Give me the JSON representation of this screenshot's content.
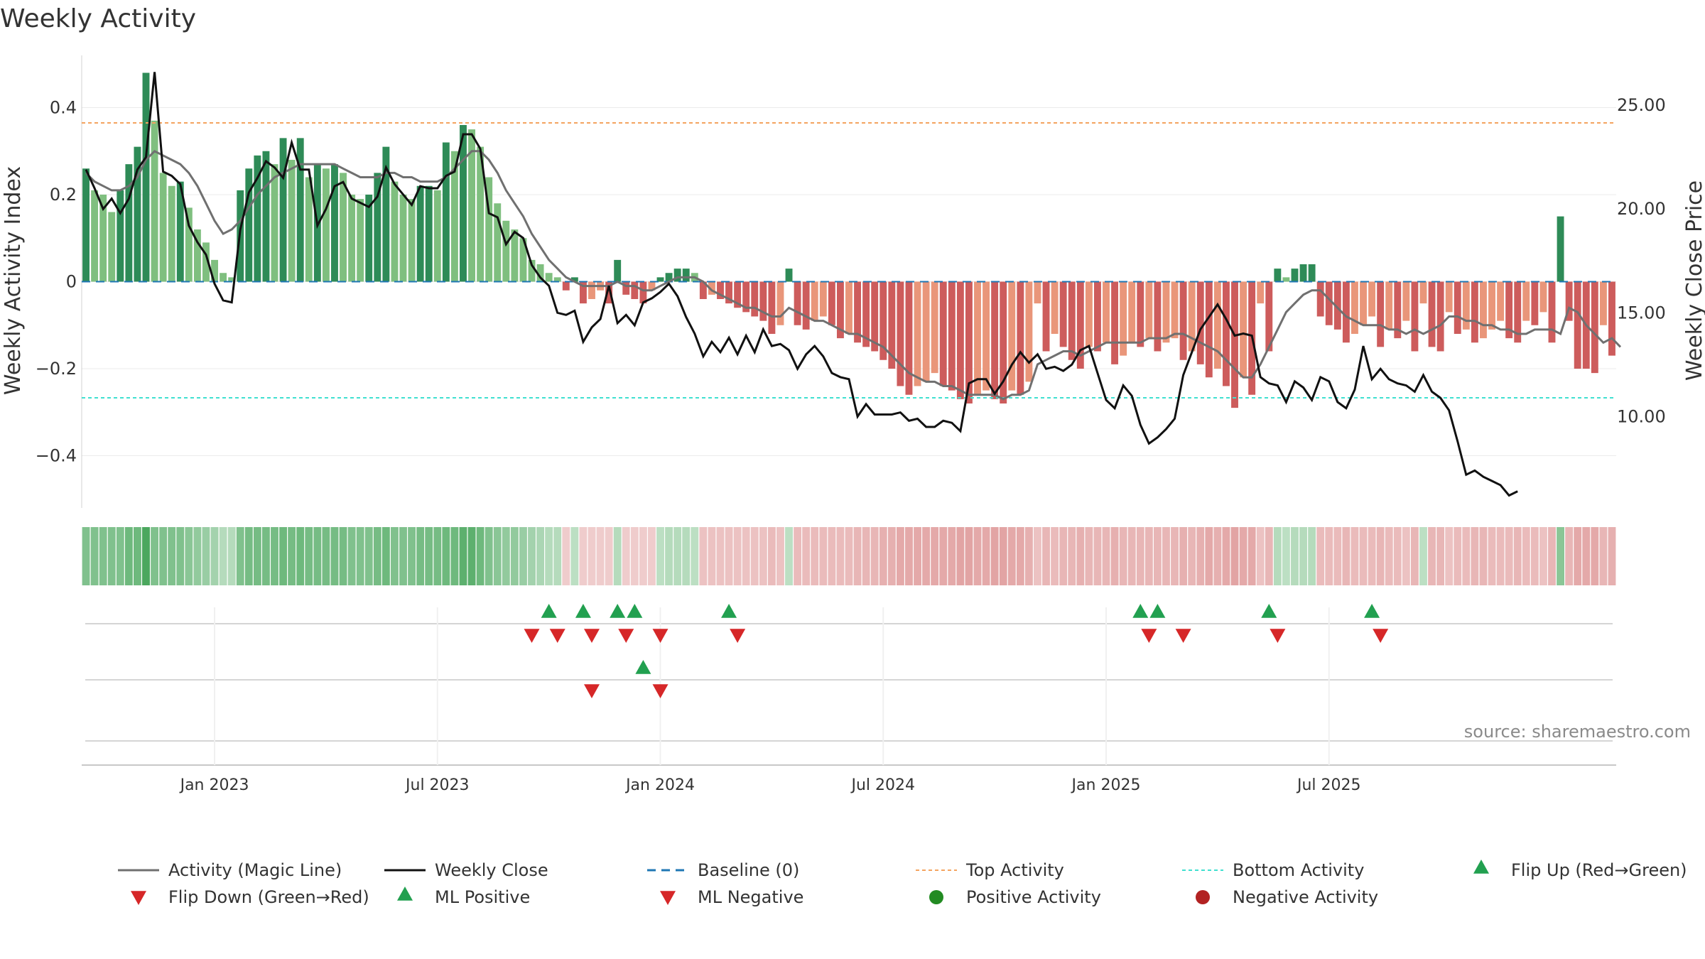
{
  "chart_data": {
    "type": "bar+line",
    "title": "Weekly Activity",
    "ylabel": "Weekly Activity Index",
    "y2label": "Weekly Close Price",
    "ylim": [
      -0.52,
      0.52
    ],
    "y2lim": [
      5.6,
      27.4
    ],
    "yticks": [
      {
        "v": 0.4,
        "label": "0.4"
      },
      {
        "v": 0.2,
        "label": "0.2"
      },
      {
        "v": 0,
        "label": "0"
      },
      {
        "v": -0.2,
        "label": "−0.2"
      },
      {
        "v": -0.4,
        "label": "−0.4"
      }
    ],
    "y2ticks": [
      {
        "v": 25,
        "label": "25.00"
      },
      {
        "v": 20,
        "label": "20.00"
      },
      {
        "v": 15,
        "label": "15.00"
      },
      {
        "v": 10,
        "label": "10.00"
      }
    ],
    "xticks": [
      {
        "week": 15,
        "label": "Jan 2023"
      },
      {
        "week": 41,
        "label": "Jul 2023"
      },
      {
        "week": 67,
        "label": "Jan 2024"
      },
      {
        "week": 93,
        "label": "Jul 2024"
      },
      {
        "week": 119,
        "label": "Jan 2025"
      },
      {
        "week": 145,
        "label": "Jul 2025"
      }
    ],
    "top_activity": 0.365,
    "bottom_activity": -0.267,
    "activity": [
      0.26,
      0.21,
      0.2,
      0.16,
      0.21,
      0.27,
      0.31,
      0.48,
      0.37,
      0.25,
      0.22,
      0.23,
      0.17,
      0.12,
      0.09,
      0.05,
      0.02,
      0.01,
      0.21,
      0.26,
      0.29,
      0.3,
      0.27,
      0.33,
      0.28,
      0.33,
      0.24,
      0.27,
      0.26,
      0.27,
      0.25,
      0.2,
      0.19,
      0.2,
      0.25,
      0.31,
      0.23,
      0.2,
      0.19,
      0.22,
      0.22,
      0.21,
      0.32,
      0.3,
      0.36,
      0.35,
      0.31,
      0.24,
      0.18,
      0.14,
      0.12,
      0.1,
      0.05,
      0.04,
      0.02,
      0.01,
      -0.02,
      0.01,
      -0.05,
      -0.04,
      -0.02,
      -0.05,
      0.05,
      -0.03,
      -0.04,
      -0.05,
      -0.02,
      0.01,
      0.02,
      0.03,
      0.03,
      0.02,
      -0.04,
      -0.03,
      -0.04,
      -0.05,
      -0.06,
      -0.07,
      -0.08,
      -0.09,
      -0.12,
      -0.1,
      0.03,
      -0.1,
      -0.11,
      -0.09,
      -0.08,
      -0.1,
      -0.13,
      -0.12,
      -0.14,
      -0.15,
      -0.16,
      -0.18,
      -0.2,
      -0.24,
      -0.26,
      -0.24,
      -0.23,
      -0.21,
      -0.24,
      -0.25,
      -0.27,
      -0.28,
      -0.26,
      -0.25,
      -0.27,
      -0.28,
      -0.25,
      -0.26,
      -0.23,
      -0.05,
      -0.16,
      -0.12,
      -0.15,
      -0.18,
      -0.2,
      -0.15,
      -0.16,
      -0.14,
      -0.19,
      -0.17,
      -0.14,
      -0.15,
      -0.13,
      -0.16,
      -0.14,
      -0.13,
      -0.18,
      -0.16,
      -0.19,
      -0.22,
      -0.2,
      -0.24,
      -0.29,
      -0.22,
      -0.26,
      -0.05,
      -0.16,
      0.03,
      0.01,
      0.03,
      0.04,
      0.04,
      -0.08,
      -0.1,
      -0.11,
      -0.14,
      -0.12,
      -0.1,
      -0.08,
      -0.15,
      -0.11,
      -0.13,
      -0.09,
      -0.16,
      -0.05,
      -0.15,
      -0.16,
      -0.07,
      -0.12,
      -0.11,
      -0.14,
      -0.13,
      -0.11,
      -0.09,
      -0.13,
      -0.14,
      -0.09,
      -0.1,
      -0.07,
      -0.14,
      0.15,
      -0.09,
      -0.2,
      -0.2,
      -0.21,
      -0.1,
      -0.17
    ],
    "magic_line": [
      0.25,
      0.23,
      0.22,
      0.21,
      0.21,
      0.22,
      0.24,
      0.28,
      0.3,
      0.29,
      0.28,
      0.27,
      0.25,
      0.22,
      0.18,
      0.14,
      0.11,
      0.12,
      0.14,
      0.17,
      0.2,
      0.22,
      0.24,
      0.25,
      0.26,
      0.27,
      0.27,
      0.27,
      0.27,
      0.27,
      0.26,
      0.25,
      0.24,
      0.24,
      0.24,
      0.25,
      0.25,
      0.24,
      0.24,
      0.23,
      0.23,
      0.23,
      0.24,
      0.26,
      0.28,
      0.3,
      0.3,
      0.28,
      0.25,
      0.21,
      0.18,
      0.15,
      0.11,
      0.08,
      0.05,
      0.03,
      0.01,
      0.0,
      -0.01,
      -0.01,
      -0.01,
      -0.01,
      0.0,
      -0.01,
      -0.01,
      -0.02,
      -0.02,
      -0.01,
      0.0,
      0.01,
      0.01,
      0.01,
      0.0,
      -0.02,
      -0.03,
      -0.04,
      -0.05,
      -0.06,
      -0.06,
      -0.07,
      -0.08,
      -0.08,
      -0.06,
      -0.07,
      -0.08,
      -0.09,
      -0.09,
      -0.1,
      -0.11,
      -0.12,
      -0.12,
      -0.13,
      -0.14,
      -0.15,
      -0.17,
      -0.19,
      -0.21,
      -0.22,
      -0.23,
      -0.23,
      -0.24,
      -0.24,
      -0.25,
      -0.26,
      -0.26,
      -0.26,
      -0.26,
      -0.27,
      -0.26,
      -0.26,
      -0.25,
      -0.19,
      -0.18,
      -0.17,
      -0.16,
      -0.16,
      -0.17,
      -0.16,
      -0.15,
      -0.14,
      -0.14,
      -0.14,
      -0.14,
      -0.14,
      -0.13,
      -0.13,
      -0.13,
      -0.12,
      -0.12,
      -0.13,
      -0.14,
      -0.15,
      -0.16,
      -0.18,
      -0.2,
      -0.22,
      -0.22,
      -0.19,
      -0.15,
      -0.11,
      -0.07,
      -0.05,
      -0.03,
      -0.02,
      -0.02,
      -0.04,
      -0.06,
      -0.08,
      -0.09,
      -0.1,
      -0.1,
      -0.1,
      -0.11,
      -0.11,
      -0.12,
      -0.11,
      -0.12,
      -0.11,
      -0.1,
      -0.08,
      -0.08,
      -0.09,
      -0.09,
      -0.1,
      -0.1,
      -0.11,
      -0.11,
      -0.12,
      -0.12,
      -0.11,
      -0.11,
      -0.11,
      -0.12,
      -0.06,
      -0.07,
      -0.1,
      -0.12,
      -0.14,
      -0.13,
      -0.15
    ],
    "weekly_close": [
      21.9,
      21.0,
      20.0,
      20.5,
      19.8,
      20.5,
      21.9,
      22.5,
      26.6,
      21.8,
      21.6,
      21.2,
      19.2,
      18.4,
      17.8,
      16.4,
      15.6,
      15.5,
      19.0,
      20.8,
      21.5,
      22.3,
      22.0,
      21.5,
      23.2,
      21.9,
      21.9,
      19.2,
      20.0,
      21.1,
      21.3,
      20.5,
      20.3,
      20.1,
      20.6,
      22.0,
      21.2,
      20.7,
      20.2,
      21.1,
      21.0,
      21.0,
      21.6,
      21.8,
      23.6,
      23.6,
      22.9,
      19.8,
      19.6,
      18.3,
      18.9,
      18.6,
      17.3,
      16.7,
      16.3,
      15.0,
      14.9,
      15.1,
      13.6,
      14.3,
      14.7,
      16.3,
      14.5,
      14.9,
      14.4,
      15.5,
      15.7,
      16.0,
      16.4,
      15.8,
      14.8,
      14.0,
      12.9,
      13.6,
      13.1,
      13.8,
      13.0,
      13.9,
      13.1,
      14.2,
      13.4,
      13.5,
      13.2,
      12.3,
      13.0,
      13.4,
      12.9,
      12.1,
      11.9,
      11.8,
      10.0,
      10.6,
      10.1,
      10.1,
      10.1,
      10.2,
      9.8,
      9.9,
      9.5,
      9.5,
      9.8,
      9.7,
      9.3,
      11.6,
      11.8,
      11.8,
      11.1,
      11.7,
      12.5,
      13.1,
      12.6,
      13.0,
      12.3,
      12.4,
      12.2,
      12.5,
      13.2,
      13.4,
      12.1,
      10.8,
      10.4,
      11.5,
      11.0,
      9.6,
      8.7,
      9.0,
      9.4,
      9.9,
      12.0,
      13.1,
      14.2,
      14.8,
      15.4,
      14.7,
      13.9,
      14.0,
      13.9,
      11.9,
      11.6,
      11.5,
      10.7,
      11.7,
      11.4,
      10.8,
      11.9,
      11.7,
      10.7,
      10.4,
      11.3,
      13.4,
      11.8,
      12.3,
      11.8,
      11.6,
      11.5,
      11.2,
      12.0,
      11.2,
      10.9,
      10.3,
      8.8,
      7.2,
      7.4,
      7.1,
      6.9,
      6.7,
      6.2,
      6.4
    ],
    "heat_strip": [
      0.5,
      0.5,
      0.5,
      0.5,
      0.5,
      0.6,
      0.6,
      0.8,
      0.5,
      0.5,
      0.5,
      0.5,
      0.45,
      0.4,
      0.35,
      0.3,
      0.2,
      0.2,
      0.5,
      0.55,
      0.55,
      0.55,
      0.55,
      0.6,
      0.55,
      0.6,
      0.55,
      0.55,
      0.55,
      0.55,
      0.55,
      0.5,
      0.5,
      0.5,
      0.55,
      0.6,
      0.5,
      0.5,
      0.5,
      0.55,
      0.55,
      0.55,
      0.6,
      0.6,
      0.7,
      0.7,
      0.6,
      0.5,
      0.45,
      0.4,
      0.4,
      0.35,
      0.3,
      0.25,
      0.2,
      0.2,
      -0.2,
      0.15,
      -0.2,
      -0.2,
      -0.2,
      -0.2,
      0.2,
      -0.2,
      -0.2,
      -0.2,
      -0.2,
      0.15,
      0.2,
      0.2,
      0.2,
      0.15,
      -0.3,
      -0.3,
      -0.3,
      -0.3,
      -0.3,
      -0.3,
      -0.3,
      -0.3,
      -0.35,
      -0.3,
      0.15,
      -0.35,
      -0.35,
      -0.35,
      -0.35,
      -0.35,
      -0.35,
      -0.35,
      -0.4,
      -0.4,
      -0.4,
      -0.45,
      -0.45,
      -0.5,
      -0.5,
      -0.5,
      -0.5,
      -0.5,
      -0.5,
      -0.5,
      -0.55,
      -0.55,
      -0.5,
      -0.5,
      -0.55,
      -0.55,
      -0.5,
      -0.5,
      -0.45,
      -0.3,
      -0.4,
      -0.35,
      -0.4,
      -0.4,
      -0.45,
      -0.4,
      -0.4,
      -0.4,
      -0.45,
      -0.4,
      -0.4,
      -0.4,
      -0.4,
      -0.4,
      -0.4,
      -0.4,
      -0.45,
      -0.4,
      -0.45,
      -0.5,
      -0.45,
      -0.5,
      -0.55,
      -0.5,
      -0.5,
      -0.3,
      -0.4,
      0.2,
      0.15,
      0.2,
      0.2,
      0.2,
      -0.35,
      -0.35,
      -0.35,
      -0.4,
      -0.35,
      -0.35,
      -0.35,
      -0.4,
      -0.35,
      -0.35,
      -0.3,
      -0.4,
      0.15,
      -0.4,
      -0.4,
      -0.3,
      -0.35,
      -0.35,
      -0.4,
      -0.4,
      -0.35,
      -0.35,
      -0.35,
      -0.4,
      -0.35,
      -0.35,
      -0.3,
      -0.4,
      0.45,
      -0.4,
      -0.5,
      -0.5,
      -0.5,
      -0.4,
      -0.45
    ],
    "flip_up_weeks": [
      54,
      58,
      62,
      64,
      75,
      123,
      125,
      138,
      150
    ],
    "flip_down_weeks": [
      52,
      55,
      59,
      63,
      67,
      76,
      124,
      128,
      139,
      151
    ],
    "ml_positive_weeks": [
      65
    ],
    "ml_negative_weeks": [
      59,
      67
    ],
    "colors": {
      "pos_dark": "#2e8b57",
      "pos_light": "#7fbf7f",
      "neg_dark": "#cd5c5c",
      "neg_light": "#e9967a",
      "magic": "#707070",
      "close": "#111111",
      "baseline": "#1f77b4",
      "top": "#f4a460",
      "bottom": "#40e0d0",
      "flip_up": "#22a050",
      "flip_down": "#d62728",
      "pos_dot": "#228b22",
      "neg_dot": "#b22222",
      "source": "#8a8a8a"
    },
    "source": "source: sharemaestro.com",
    "legend": [
      {
        "label": "Activity (Magic Line)",
        "key": "magic"
      },
      {
        "label": "Weekly Close",
        "key": "close"
      },
      {
        "label": "Baseline (0)",
        "key": "baseline"
      },
      {
        "label": "Top Activity",
        "key": "top"
      },
      {
        "label": "Bottom Activity",
        "key": "bottom"
      },
      {
        "label": "Flip Up (Red→Green)",
        "key": "flip_up"
      },
      {
        "label": "Flip Down (Green→Red)",
        "key": "flip_down"
      },
      {
        "label": "ML Positive",
        "key": "ml_pos"
      },
      {
        "label": "ML Negative",
        "key": "ml_neg"
      },
      {
        "label": "Positive Activity",
        "key": "pos_dot"
      },
      {
        "label": "Negative Activity",
        "key": "neg_dot"
      }
    ]
  }
}
